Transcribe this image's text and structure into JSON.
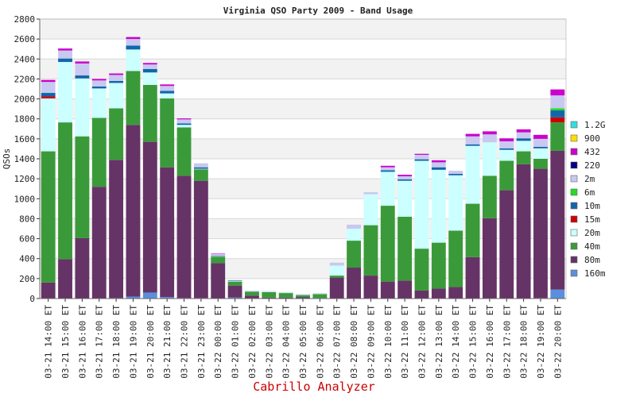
{
  "chart_data": {
    "type": "bar",
    "stacked": true,
    "title": "Virginia QSO Party 2009 - Band Usage",
    "ylabel": "QSOs",
    "xlabel": "",
    "footer": "Cabrillo Analyzer",
    "ylim": [
      0,
      2800
    ],
    "yticks": [
      0,
      200,
      400,
      600,
      800,
      1000,
      1200,
      1400,
      1600,
      1800,
      2000,
      2200,
      2400,
      2600,
      2800
    ],
    "grid": true,
    "legend_position": "right",
    "categories": [
      "03-21 14:00 ET",
      "03-21 15:00 ET",
      "03-21 16:00 ET",
      "03-21 17:00 ET",
      "03-21 18:00 ET",
      "03-21 19:00 ET",
      "03-21 20:00 ET",
      "03-21 21:00 ET",
      "03-21 22:00 ET",
      "03-21 23:00 ET",
      "03-22 00:00 ET",
      "03-22 01:00 ET",
      "03-22 02:00 ET",
      "03-22 03:00 ET",
      "03-22 04:00 ET",
      "03-22 05:00 ET",
      "03-22 06:00 ET",
      "03-22 07:00 ET",
      "03-22 08:00 ET",
      "03-22 09:00 ET",
      "03-22 10:00 ET",
      "03-22 11:00 ET",
      "03-22 12:00 ET",
      "03-22 13:00 ET",
      "03-22 14:00 ET",
      "03-22 15:00 ET",
      "03-22 16:00 ET",
      "03-22 17:00 ET",
      "03-22 18:00 ET",
      "03-22 19:00 ET",
      "03-22 20:00 ET"
    ],
    "series": [
      {
        "name": "160m",
        "color": "#5b8fdc",
        "values": [
          0,
          0,
          0,
          0,
          5,
          20,
          60,
          15,
          5,
          5,
          0,
          10,
          0,
          0,
          0,
          0,
          0,
          0,
          0,
          0,
          0,
          0,
          0,
          0,
          0,
          0,
          0,
          0,
          0,
          5,
          90
        ]
      },
      {
        "name": "80m",
        "color": "#663366",
        "values": [
          160,
          395,
          605,
          1120,
          1385,
          1720,
          1510,
          1300,
          1225,
          1175,
          355,
          120,
          30,
          10,
          10,
          15,
          5,
          210,
          310,
          230,
          170,
          180,
          80,
          100,
          115,
          415,
          805,
          1085,
          1345,
          1295,
          1390
        ]
      },
      {
        "name": "40m",
        "color": "#3a9a3a",
        "values": [
          1315,
          1370,
          1020,
          690,
          515,
          540,
          570,
          690,
          485,
          115,
          65,
          40,
          40,
          55,
          45,
          20,
          40,
          20,
          270,
          505,
          760,
          640,
          420,
          460,
          565,
          535,
          425,
          295,
          130,
          100,
          285
        ]
      },
      {
        "name": "20m",
        "color": "#ccffff",
        "values": [
          530,
          605,
          580,
          295,
          255,
          215,
          125,
          50,
          25,
          5,
          5,
          5,
          5,
          5,
          5,
          5,
          5,
          100,
          120,
          310,
          340,
          360,
          880,
          730,
          555,
          580,
          335,
          110,
          105,
          105,
          0
        ]
      },
      {
        "name": "15m",
        "color": "#cc0000",
        "values": [
          20,
          0,
          0,
          0,
          0,
          0,
          0,
          0,
          0,
          0,
          0,
          0,
          0,
          0,
          0,
          0,
          0,
          0,
          0,
          0,
          0,
          0,
          0,
          0,
          0,
          0,
          0,
          0,
          0,
          0,
          50
        ]
      },
      {
        "name": "10m",
        "color": "#1166aa",
        "values": [
          35,
          35,
          30,
          20,
          20,
          40,
          35,
          25,
          15,
          15,
          5,
          5,
          0,
          0,
          0,
          0,
          0,
          0,
          0,
          0,
          15,
          15,
          15,
          25,
          15,
          15,
          0,
          15,
          25,
          15,
          70
        ]
      },
      {
        "name": "6m",
        "color": "#22dd22",
        "values": [
          0,
          0,
          0,
          0,
          0,
          0,
          0,
          0,
          0,
          0,
          0,
          0,
          0,
          0,
          0,
          0,
          0,
          0,
          0,
          0,
          0,
          0,
          0,
          0,
          0,
          0,
          0,
          0,
          0,
          0,
          20
        ]
      },
      {
        "name": "2m",
        "color": "#c8c8f0",
        "values": [
          110,
          80,
          120,
          60,
          60,
          65,
          45,
          50,
          40,
          40,
          15,
          5,
          5,
          5,
          5,
          5,
          5,
          30,
          40,
          20,
          30,
          30,
          45,
          50,
          30,
          80,
          80,
          70,
          60,
          80,
          130
        ]
      },
      {
        "name": "220",
        "color": "#000080",
        "values": [
          0,
          0,
          0,
          0,
          0,
          0,
          0,
          0,
          0,
          0,
          0,
          0,
          0,
          0,
          0,
          0,
          0,
          0,
          0,
          0,
          0,
          0,
          0,
          0,
          0,
          0,
          0,
          0,
          0,
          0,
          0
        ]
      },
      {
        "name": "432",
        "color": "#cc00cc",
        "values": [
          20,
          20,
          20,
          15,
          15,
          20,
          15,
          15,
          10,
          0,
          5,
          0,
          0,
          0,
          0,
          0,
          0,
          0,
          0,
          0,
          15,
          15,
          10,
          20,
          0,
          25,
          30,
          30,
          30,
          40,
          60
        ]
      },
      {
        "name": "900",
        "color": "#ffdd00",
        "values": [
          0,
          0,
          0,
          0,
          0,
          0,
          0,
          0,
          0,
          0,
          0,
          0,
          0,
          0,
          0,
          0,
          0,
          0,
          0,
          0,
          0,
          0,
          0,
          0,
          0,
          0,
          0,
          0,
          0,
          0,
          0
        ]
      },
      {
        "name": "1.2G",
        "color": "#33dddd",
        "values": [
          0,
          0,
          0,
          0,
          0,
          0,
          0,
          0,
          0,
          0,
          0,
          0,
          0,
          0,
          0,
          0,
          0,
          0,
          0,
          0,
          0,
          0,
          0,
          0,
          0,
          0,
          0,
          0,
          0,
          0,
          0
        ]
      }
    ]
  }
}
